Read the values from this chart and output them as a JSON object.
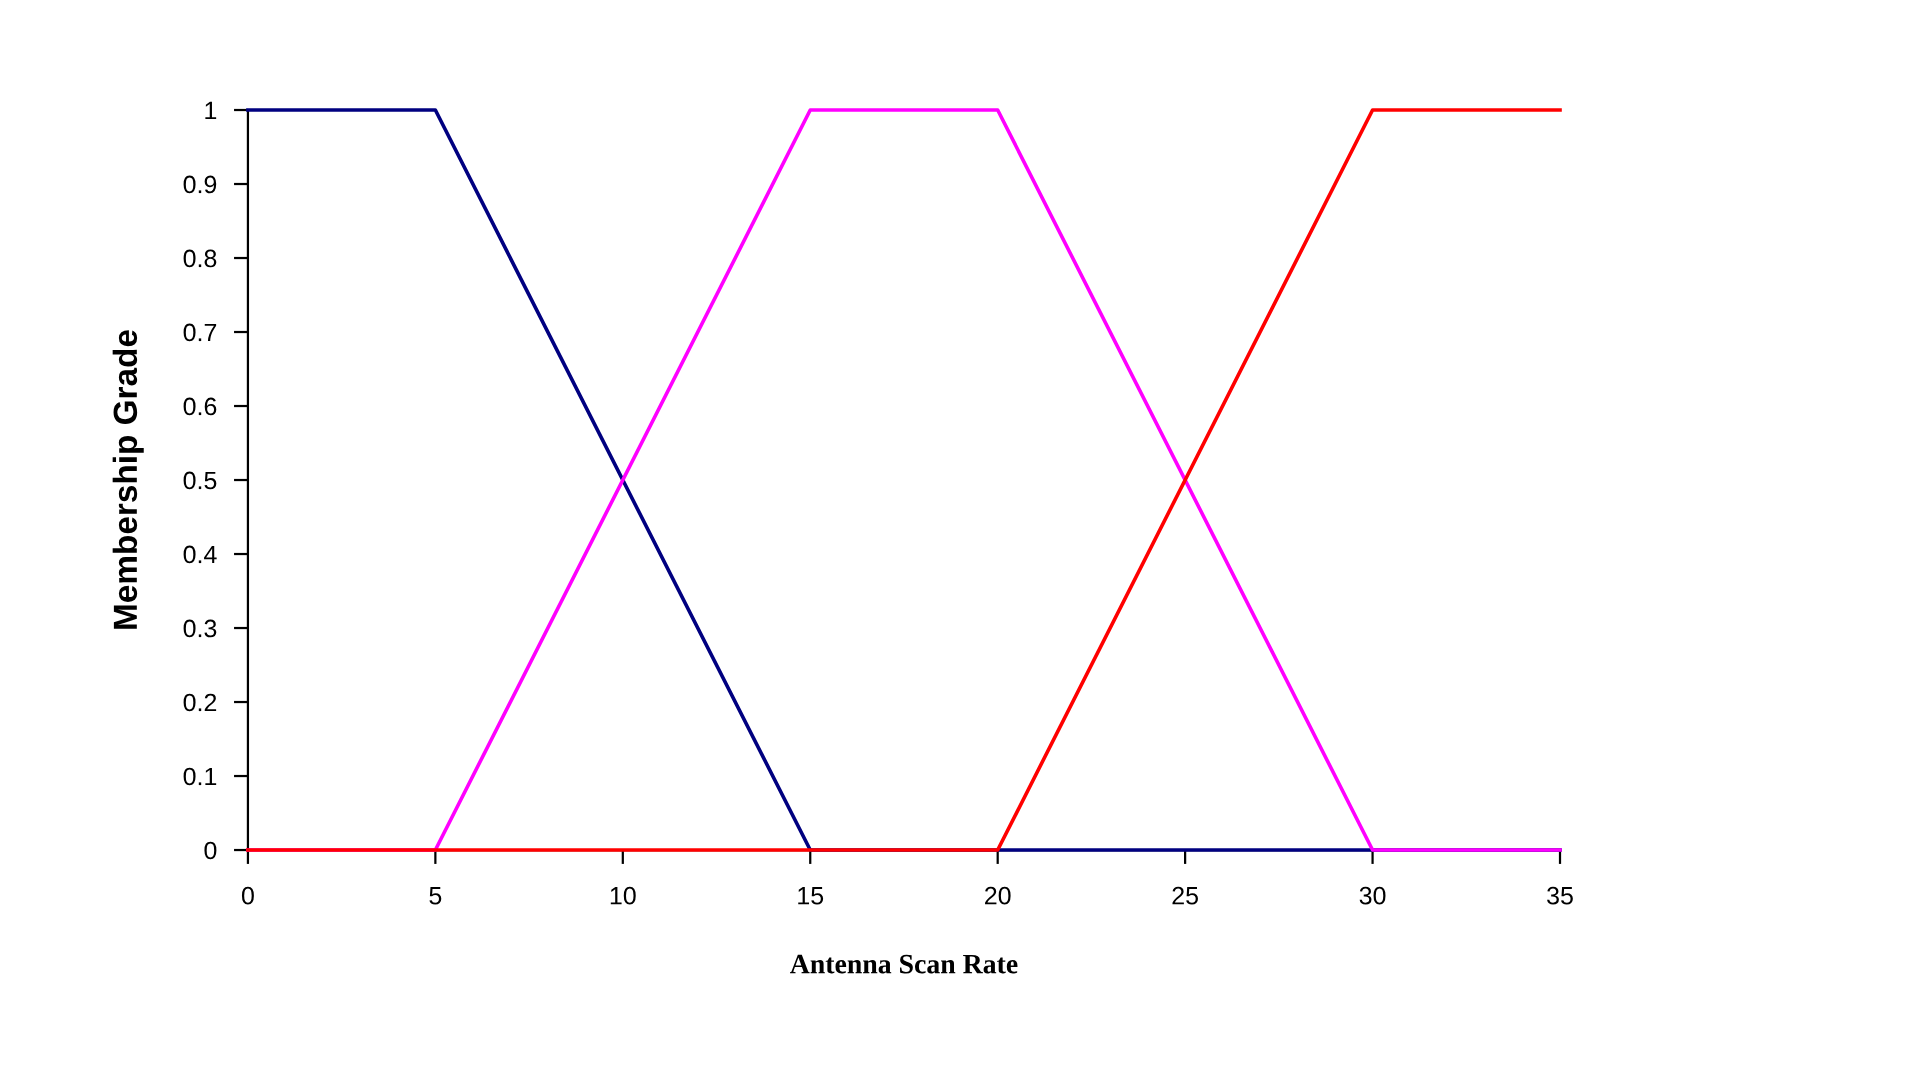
{
  "chart_data": {
    "type": "line",
    "xlabel": "Antenna Scan Rate",
    "ylabel": "Membership Grade",
    "series": [
      {
        "color": "#000080",
        "x": [
          0,
          5,
          15,
          35
        ],
        "values": [
          1,
          1,
          0,
          0
        ]
      },
      {
        "color": "#ff00ff",
        "x": [
          0,
          5,
          15,
          20,
          30,
          35
        ],
        "values": [
          0,
          0,
          1,
          1,
          0,
          0
        ]
      },
      {
        "color": "#ff0000",
        "x": [
          0,
          20,
          30,
          35
        ],
        "values": [
          0,
          0,
          1,
          1
        ]
      }
    ],
    "xlim": [
      0,
      35
    ],
    "xticks": [
      0,
      5,
      10,
      15,
      20,
      25,
      30,
      35
    ],
    "ylim": [
      0,
      1
    ],
    "yticks": [
      0,
      0.1,
      0.2,
      0.3,
      0.4,
      0.5,
      0.6,
      0.7,
      0.8,
      0.9,
      1
    ],
    "grid": false,
    "legend": false,
    "marker": "none",
    "line_style": "solid"
  }
}
